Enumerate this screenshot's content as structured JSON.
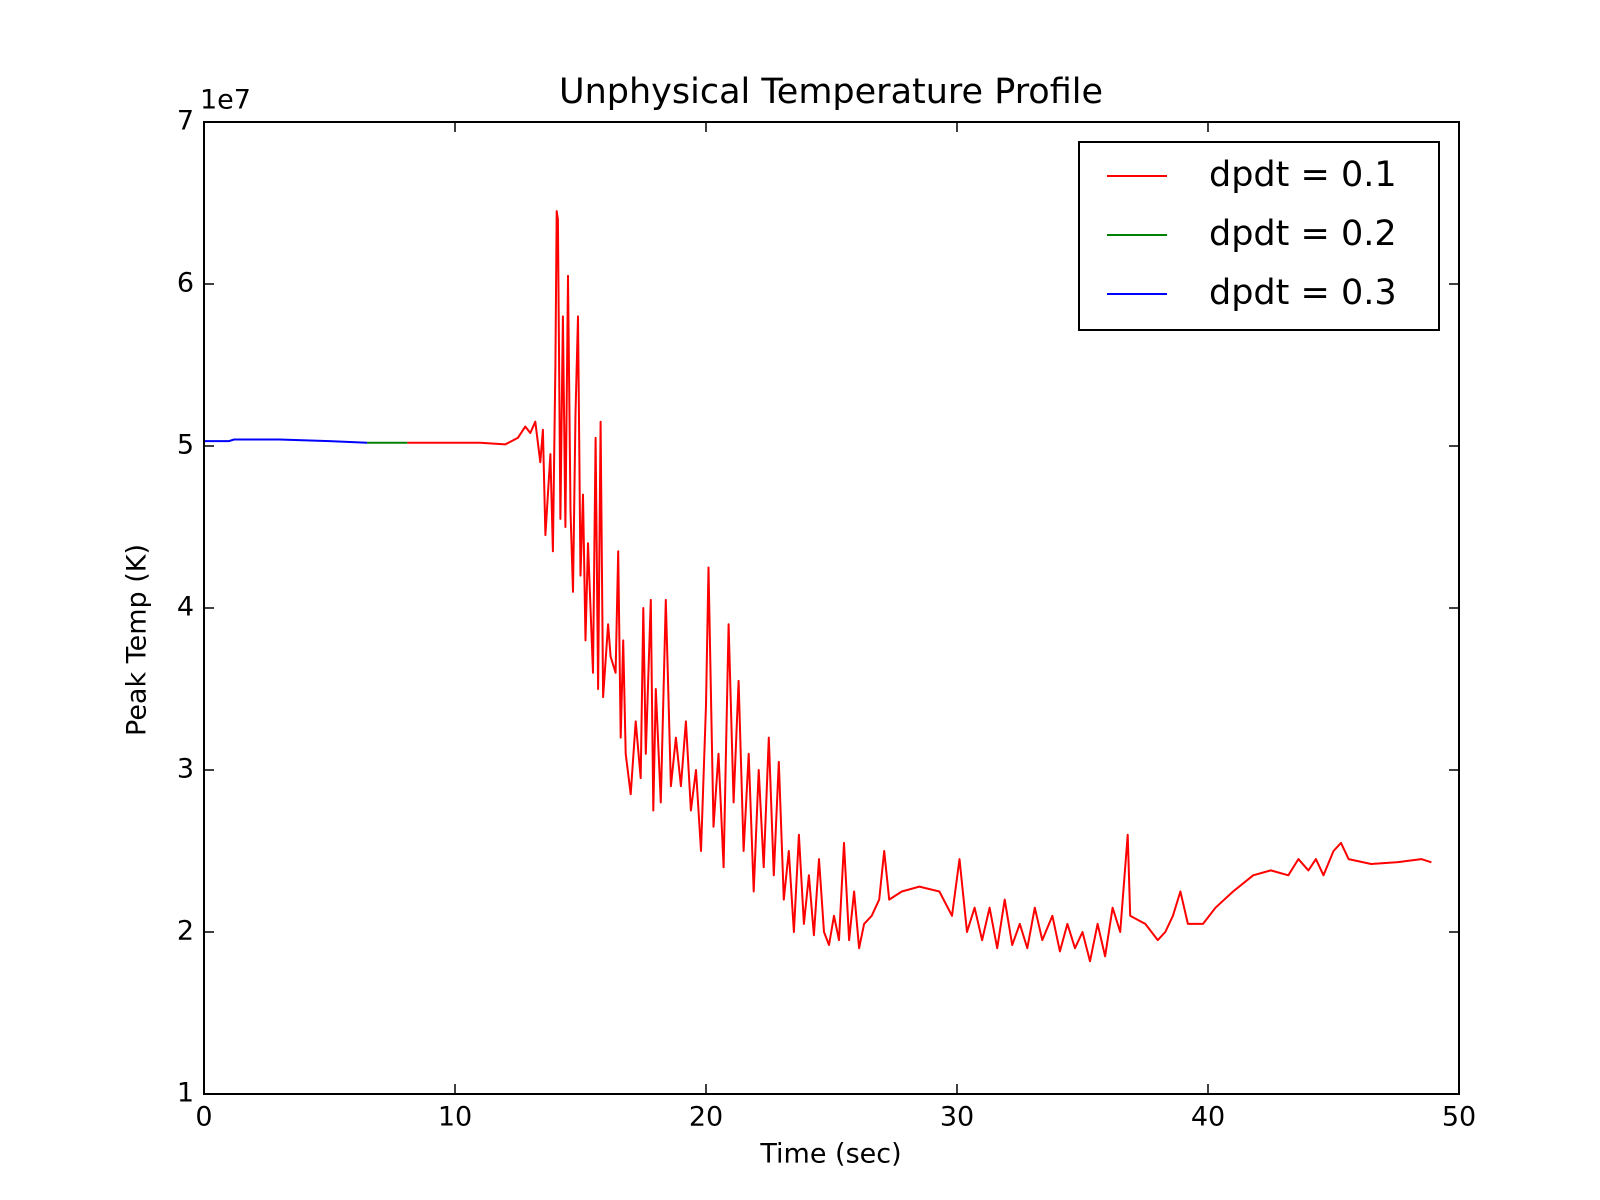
{
  "chart_data": {
    "type": "line",
    "title": "Unphysical Temperature Profile",
    "x_label": "Time (sec)",
    "y_label": "Peak Temp (K)",
    "y_offset_label": "1e7",
    "xlim": [
      0,
      50
    ],
    "xticks": [
      0,
      10,
      20,
      30,
      40,
      50
    ],
    "ylim": [
      1,
      7
    ],
    "yticks": [
      1,
      2,
      3,
      4,
      5,
      6,
      7
    ],
    "legend": "upper right",
    "grid": false,
    "series": [
      {
        "name": "dpdt = 0.1",
        "color": "#ff0000",
        "x": [
          8.1,
          9,
          10,
          11,
          12,
          12.5,
          12.8,
          13,
          13.2,
          13.4,
          13.5,
          13.6,
          13.8,
          13.9,
          14.0,
          14.05,
          14.1,
          14.2,
          14.3,
          14.4,
          14.5,
          14.6,
          14.7,
          14.8,
          14.9,
          15.0,
          15.1,
          15.2,
          15.3,
          15.5,
          15.6,
          15.7,
          15.8,
          15.9,
          16.1,
          16.2,
          16.4,
          16.5,
          16.6,
          16.7,
          16.8,
          17.0,
          17.2,
          17.4,
          17.5,
          17.6,
          17.8,
          17.9,
          18.0,
          18.2,
          18.4,
          18.6,
          18.8,
          19.0,
          19.2,
          19.4,
          19.6,
          19.8,
          20.0,
          20.1,
          20.3,
          20.5,
          20.7,
          20.9,
          21.1,
          21.3,
          21.5,
          21.7,
          21.9,
          22.1,
          22.3,
          22.5,
          22.7,
          22.9,
          23.1,
          23.3,
          23.5,
          23.7,
          23.9,
          24.1,
          24.3,
          24.5,
          24.7,
          24.9,
          25.1,
          25.3,
          25.5,
          25.7,
          25.9,
          26.1,
          26.3,
          26.6,
          26.9,
          27.1,
          27.3,
          27.8,
          28.5,
          29.3,
          29.8,
          30.1,
          30.4,
          30.7,
          31.0,
          31.3,
          31.6,
          31.9,
          32.2,
          32.5,
          32.8,
          33.1,
          33.4,
          33.8,
          34.1,
          34.4,
          34.7,
          35.0,
          35.3,
          35.6,
          35.9,
          36.2,
          36.5,
          36.8,
          36.9,
          37.5,
          38.0,
          38.3,
          38.6,
          38.9,
          39.2,
          39.8,
          40.3,
          41.0,
          41.8,
          42.5,
          43.2,
          43.6,
          44.0,
          44.3,
          44.6,
          45.0,
          45.3,
          45.6,
          46.5,
          47.5,
          48.5,
          48.9
        ],
        "values": [
          5.02,
          5.02,
          5.02,
          5.02,
          5.01,
          5.05,
          5.12,
          5.08,
          5.15,
          4.9,
          5.1,
          4.45,
          4.95,
          4.35,
          5.5,
          6.45,
          6.4,
          4.55,
          5.8,
          4.5,
          6.05,
          4.6,
          4.1,
          5.2,
          5.8,
          4.2,
          4.7,
          3.8,
          4.4,
          3.6,
          5.05,
          3.5,
          5.15,
          3.45,
          3.9,
          3.7,
          3.6,
          4.35,
          3.2,
          3.8,
          3.1,
          2.85,
          3.3,
          2.95,
          4.0,
          3.1,
          4.05,
          2.75,
          3.5,
          2.8,
          4.05,
          2.9,
          3.2,
          2.9,
          3.3,
          2.75,
          3.0,
          2.5,
          3.4,
          4.25,
          2.65,
          3.1,
          2.4,
          3.9,
          2.8,
          3.55,
          2.5,
          3.1,
          2.25,
          3.0,
          2.4,
          3.2,
          2.35,
          3.05,
          2.2,
          2.5,
          2.0,
          2.6,
          2.05,
          2.35,
          1.98,
          2.45,
          2.0,
          1.92,
          2.1,
          1.95,
          2.55,
          1.95,
          2.25,
          1.9,
          2.05,
          2.1,
          2.2,
          2.5,
          2.2,
          2.25,
          2.28,
          2.25,
          2.1,
          2.45,
          2.0,
          2.15,
          1.95,
          2.15,
          1.9,
          2.2,
          1.92,
          2.05,
          1.9,
          2.15,
          1.95,
          2.1,
          1.88,
          2.05,
          1.9,
          2.0,
          1.82,
          2.05,
          1.85,
          2.15,
          2.0,
          2.6,
          2.1,
          2.05,
          1.95,
          2.0,
          2.1,
          2.25,
          2.05,
          2.05,
          2.15,
          2.25,
          2.35,
          2.38,
          2.35,
          2.45,
          2.38,
          2.45,
          2.35,
          2.5,
          2.55,
          2.45,
          2.42,
          2.43,
          2.45,
          2.43
        ]
      },
      {
        "name": "dpdt = 0.2",
        "color": "#008000",
        "x": [
          6.5,
          7.5,
          8.1
        ],
        "values": [
          5.02,
          5.02,
          5.02
        ]
      },
      {
        "name": "dpdt = 0.3",
        "color": "#0000ff",
        "x": [
          0,
          1,
          1.2,
          3,
          5,
          6.5
        ],
        "values": [
          5.03,
          5.03,
          5.04,
          5.04,
          5.03,
          5.02
        ]
      }
    ]
  }
}
